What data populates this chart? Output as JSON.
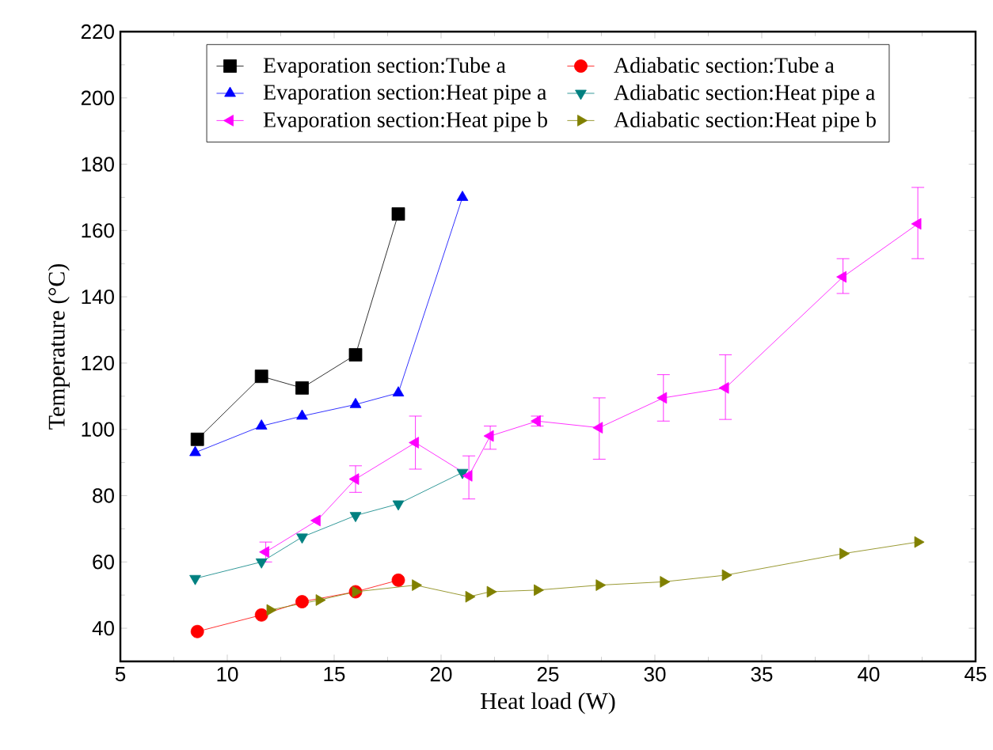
{
  "chart_data": {
    "type": "line",
    "xlabel": "Heat load (W)",
    "ylabel": "Temperature (°C)",
    "xlim": [
      5,
      45
    ],
    "ylim": [
      30,
      220
    ],
    "xticks": [
      5,
      10,
      15,
      20,
      25,
      30,
      35,
      40,
      45
    ],
    "yticks": [
      40,
      60,
      80,
      100,
      120,
      140,
      160,
      180,
      200,
      220
    ],
    "grid": false,
    "legend": "top",
    "line_style": "solid",
    "series": [
      {
        "name": "Evaporation section:Tube a",
        "color": "#000000",
        "marker": "square",
        "x": [
          8.6,
          11.6,
          13.5,
          16,
          18
        ],
        "values": [
          97,
          116,
          112.5,
          122.5,
          165
        ]
      },
      {
        "name": "Adiabatic section:Tube a",
        "color": "#ff0000",
        "marker": "circle",
        "x": [
          8.6,
          11.6,
          13.5,
          16,
          18
        ],
        "values": [
          39,
          44,
          48,
          51,
          54.5
        ]
      },
      {
        "name": "Evaporation section:Heat pipe a",
        "color": "#0000ff",
        "marker": "triangle",
        "x": [
          8.5,
          11.6,
          13.5,
          16,
          18,
          21
        ],
        "values": [
          93,
          101,
          104,
          107.5,
          111,
          170
        ]
      },
      {
        "name": "Adiabatic section:Heat pipe a",
        "color": "#008080",
        "marker": "triangle down",
        "x": [
          8.5,
          11.6,
          13.5,
          16,
          18,
          21
        ],
        "values": [
          55,
          60,
          67.5,
          74,
          77.5,
          87
        ]
      },
      {
        "name": "Evaporation section:Heat pipe b",
        "color": "#ff00ff",
        "marker": "triangle left",
        "x": [
          11.8,
          14.2,
          16,
          18.8,
          21.3,
          22.3,
          24.5,
          27.4,
          30.4,
          33.3,
          38.8,
          42.3
        ],
        "values": [
          63,
          72.5,
          85,
          96,
          86,
          98,
          102.5,
          100.5,
          109.5,
          112.5,
          146,
          162
        ],
        "errors": [
          [
            60,
            66
          ],
          null,
          [
            81,
            89
          ],
          [
            88,
            104
          ],
          [
            79,
            92
          ],
          [
            94,
            101
          ],
          [
            101,
            104
          ],
          [
            91,
            109.5
          ],
          [
            102.5,
            116.5
          ],
          [
            103,
            122.5
          ],
          [
            141,
            151.5
          ],
          [
            151.5,
            173
          ]
        ]
      },
      {
        "name": "Adiabatic section:Heat pipe b",
        "color": "#808000",
        "marker": "triangle right",
        "x": [
          12,
          14.3,
          16,
          18.8,
          21.3,
          22.3,
          24.5,
          27.4,
          30.4,
          33.3,
          38.8,
          42.3
        ],
        "values": [
          45.5,
          48.5,
          51,
          53,
          49.5,
          51,
          51.5,
          53,
          54,
          56,
          62.5,
          66
        ]
      }
    ]
  }
}
